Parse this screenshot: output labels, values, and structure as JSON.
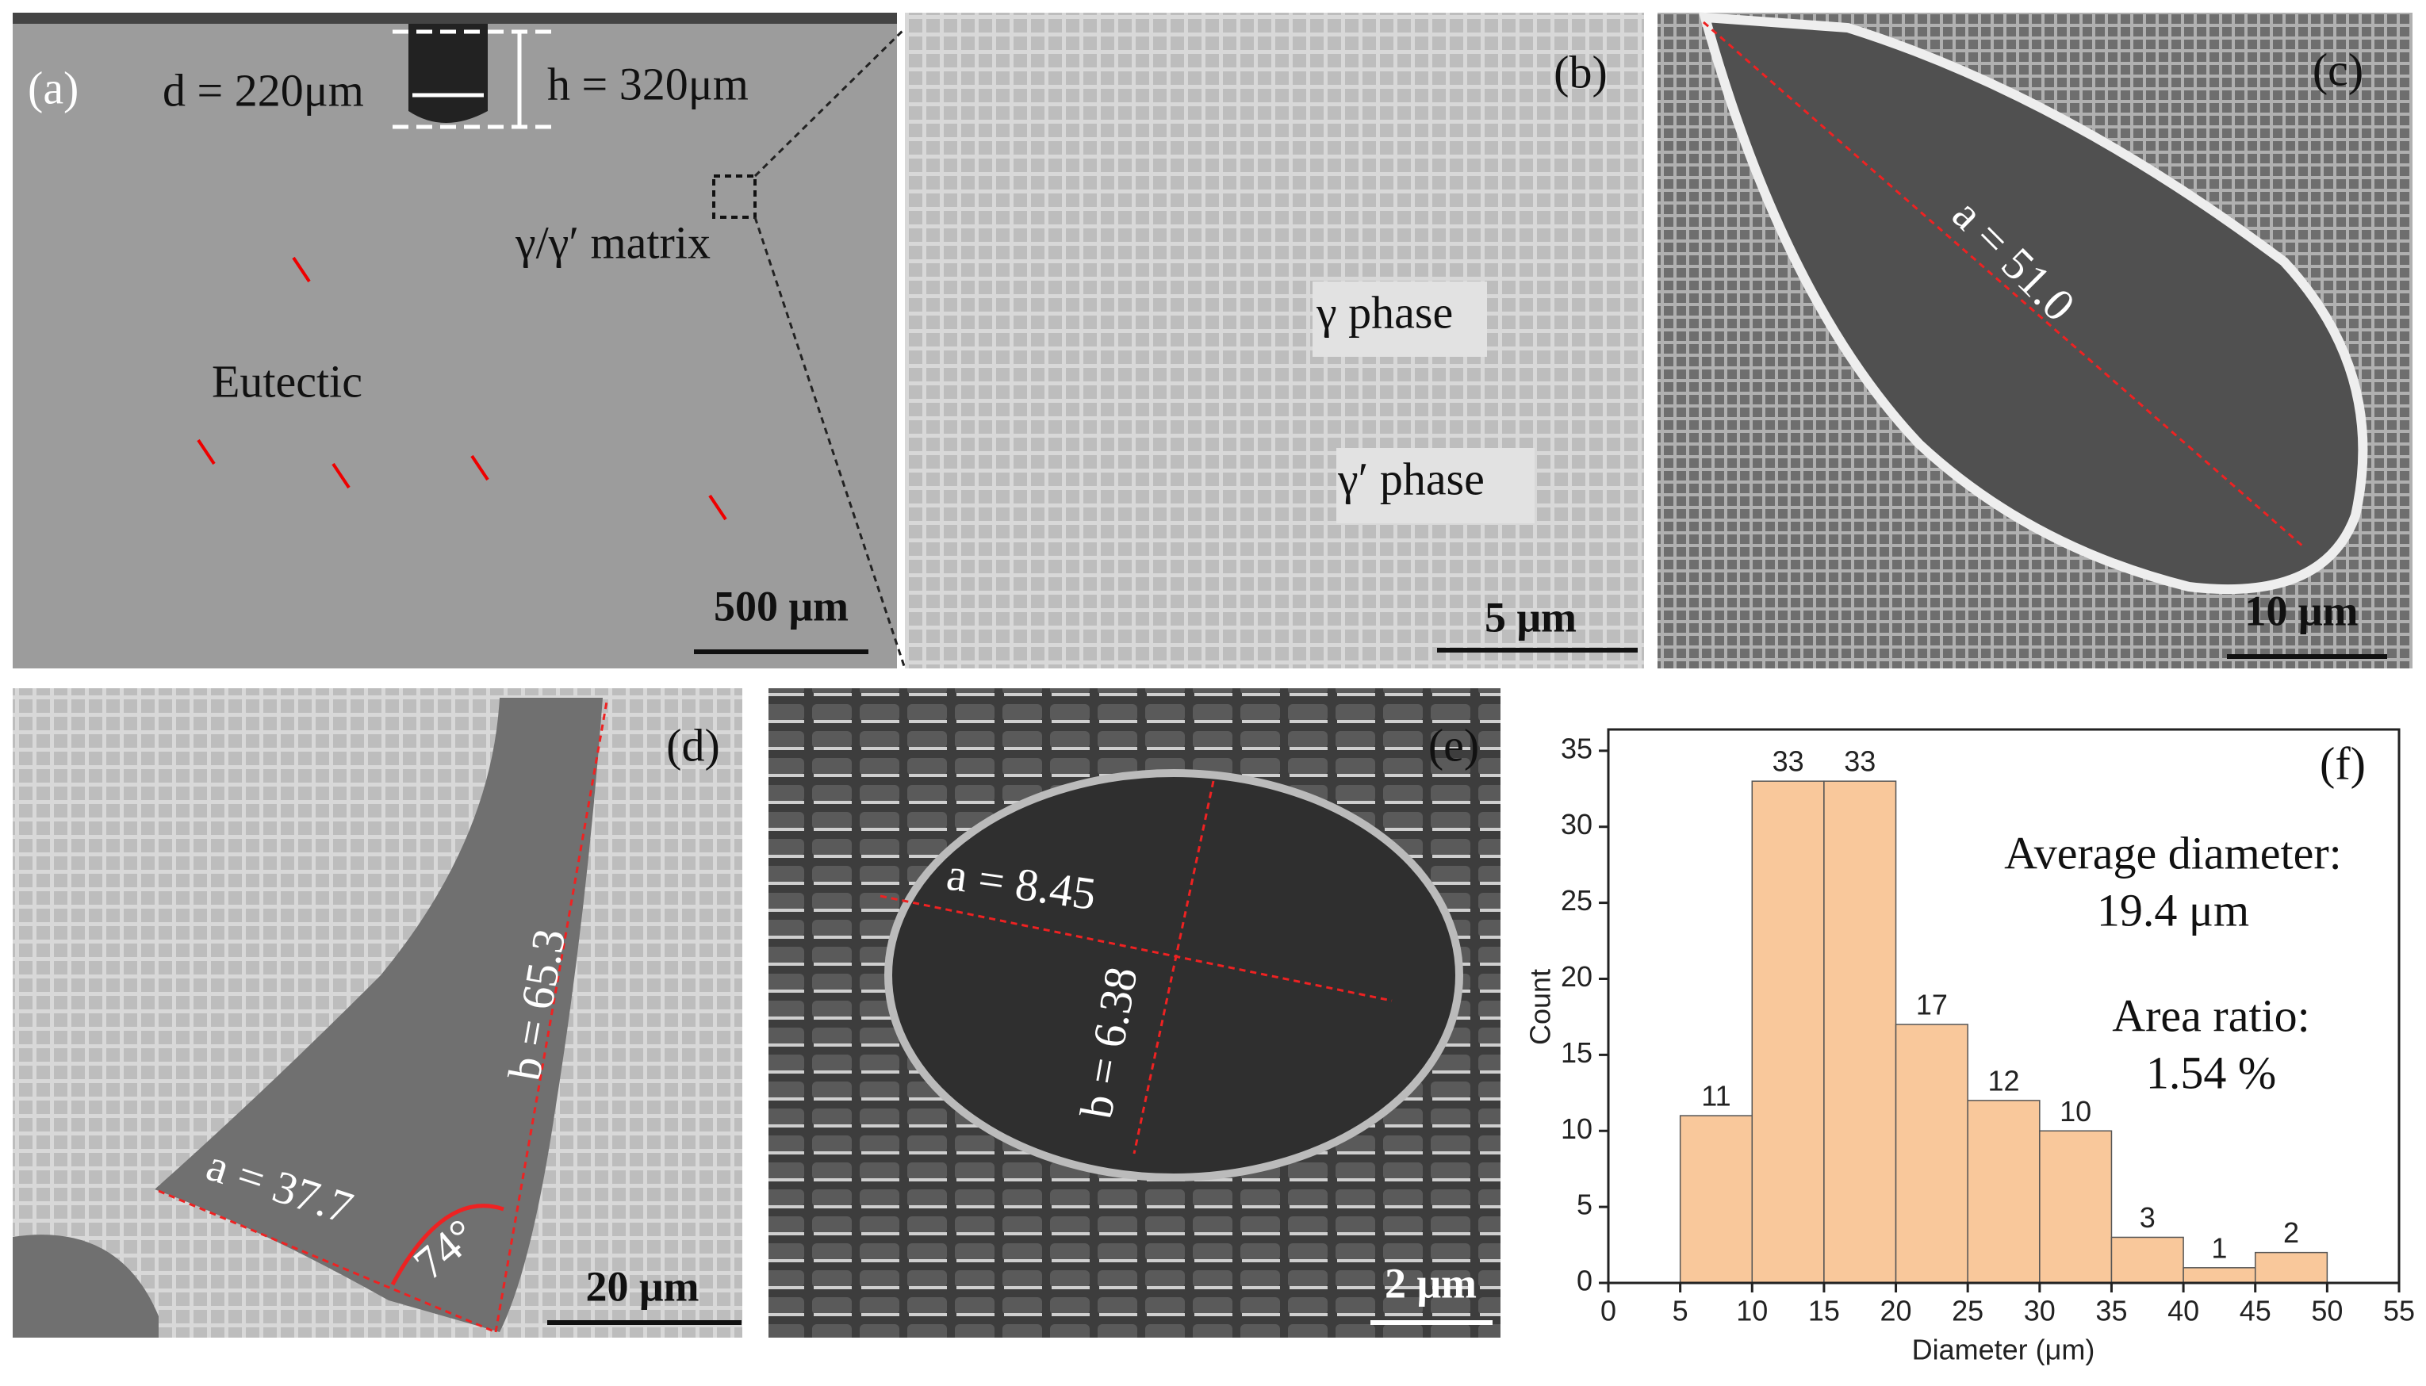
{
  "panels": {
    "a": {
      "label": "(a)",
      "depth_width": "d = 220μm",
      "depth_height": "h = 320μm",
      "matrix": "γ/γ′ matrix",
      "eutectic": "Eutectic",
      "scale_bar": "500 μm"
    },
    "b": {
      "label": "(b)",
      "gamma": "γ phase",
      "gamma_prime": "γ′ phase",
      "scale_bar": "5 μm"
    },
    "c": {
      "label": "(c)",
      "length_a": "a = 51.0",
      "scale_bar": "10 μm"
    },
    "d": {
      "label": "(d)",
      "length_a": "a = 37.7",
      "length_b": "b = 65.3",
      "angle": "74°",
      "scale_bar": "20 μm"
    },
    "e": {
      "label": "(e)",
      "length_a": "a = 8.45",
      "length_b": "b = 6.38",
      "scale_bar": "2 μm"
    }
  },
  "chart_data": {
    "type": "histogram",
    "panel_label": "(f)",
    "x_label": "Diameter (μm)",
    "y_label": "Count",
    "bins": [
      5,
      10,
      15,
      20,
      25,
      30,
      35,
      40,
      45,
      50
    ],
    "values": [
      11,
      33,
      33,
      17,
      12,
      10,
      3,
      1,
      2
    ],
    "color": "#f9c89b",
    "xlim": [
      0,
      55
    ],
    "xticks": [
      0,
      5,
      10,
      15,
      20,
      25,
      30,
      35,
      40,
      45,
      50,
      55
    ],
    "ylim": [
      0,
      36.4
    ],
    "yticks": [
      0,
      5,
      10,
      15,
      20,
      25,
      30,
      35
    ],
    "annotations": [
      "Average diameter:",
      "19.4 μm",
      "Area ratio:",
      "1.54 %"
    ]
  }
}
